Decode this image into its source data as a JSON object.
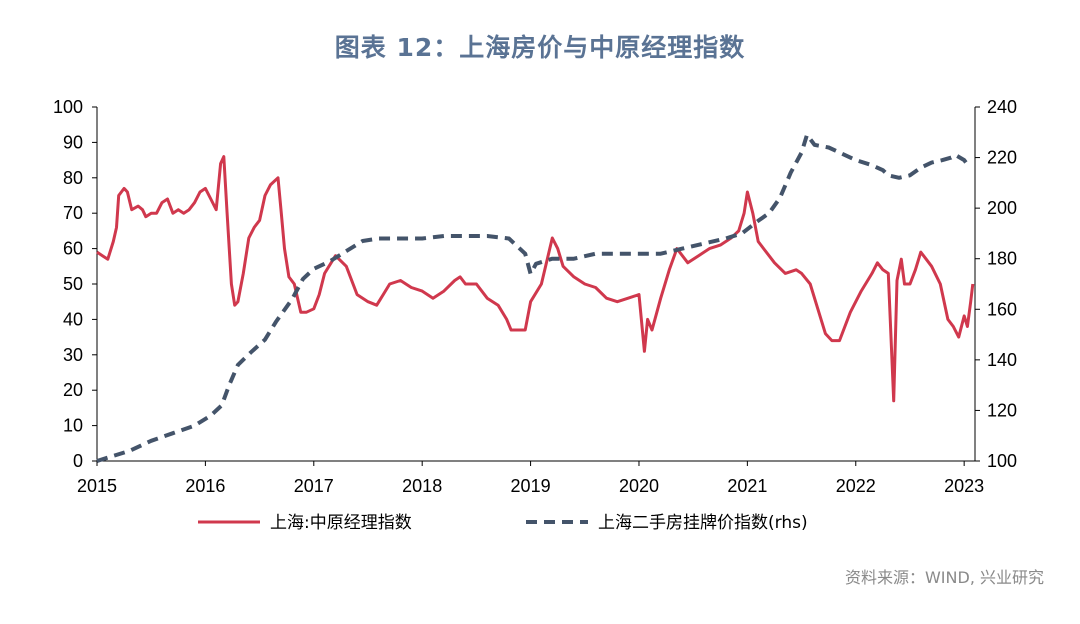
{
  "title": "图表 12：上海房价与中原经理指数",
  "source": "资料来源：WIND, 兴业研究",
  "colors": {
    "series1": "#d0384d",
    "series2": "#44546a",
    "title": "#5a7394"
  },
  "chart_data": {
    "type": "line",
    "title": "",
    "xlabel": "",
    "ylabel": "",
    "x_ticks": [
      "2015",
      "2016",
      "2017",
      "2018",
      "2019",
      "2020",
      "2021",
      "2022",
      "2023"
    ],
    "xlim": [
      2015,
      2023.1
    ],
    "y_left": {
      "ylim": [
        0,
        100
      ],
      "ticks": [
        "0",
        "10",
        "20",
        "30",
        "40",
        "50",
        "60",
        "70",
        "80",
        "90",
        "100"
      ]
    },
    "y_right": {
      "ylim": [
        100,
        240
      ],
      "ticks": [
        "100",
        "120",
        "140",
        "160",
        "180",
        "200",
        "220",
        "240"
      ]
    },
    "legend_position": "bottom",
    "series": [
      {
        "name": "上海:中原经理指数",
        "axis": "left",
        "style": "solid",
        "points": [
          [
            2015.0,
            59
          ],
          [
            2015.05,
            58
          ],
          [
            2015.1,
            57
          ],
          [
            2015.15,
            62
          ],
          [
            2015.18,
            66
          ],
          [
            2015.2,
            75
          ],
          [
            2015.25,
            77
          ],
          [
            2015.28,
            76
          ],
          [
            2015.32,
            71
          ],
          [
            2015.38,
            72
          ],
          [
            2015.42,
            71
          ],
          [
            2015.45,
            69
          ],
          [
            2015.5,
            70
          ],
          [
            2015.55,
            70
          ],
          [
            2015.6,
            73
          ],
          [
            2015.65,
            74
          ],
          [
            2015.7,
            70
          ],
          [
            2015.75,
            71
          ],
          [
            2015.8,
            70
          ],
          [
            2015.85,
            71
          ],
          [
            2015.9,
            73
          ],
          [
            2015.95,
            76
          ],
          [
            2016.0,
            77
          ],
          [
            2016.05,
            74
          ],
          [
            2016.1,
            71
          ],
          [
            2016.14,
            84
          ],
          [
            2016.17,
            86
          ],
          [
            2016.2,
            70
          ],
          [
            2016.24,
            50
          ],
          [
            2016.27,
            44
          ],
          [
            2016.3,
            45
          ],
          [
            2016.35,
            53
          ],
          [
            2016.4,
            63
          ],
          [
            2016.45,
            66
          ],
          [
            2016.5,
            68
          ],
          [
            2016.55,
            75
          ],
          [
            2016.6,
            78
          ],
          [
            2016.67,
            80
          ],
          [
            2016.7,
            70
          ],
          [
            2016.73,
            60
          ],
          [
            2016.77,
            52
          ],
          [
            2016.82,
            50
          ],
          [
            2016.88,
            42
          ],
          [
            2016.93,
            42
          ],
          [
            2017.0,
            43
          ],
          [
            2017.05,
            47
          ],
          [
            2017.1,
            53
          ],
          [
            2017.2,
            58
          ],
          [
            2017.3,
            55
          ],
          [
            2017.4,
            47
          ],
          [
            2017.5,
            45
          ],
          [
            2017.58,
            44
          ],
          [
            2017.62,
            46
          ],
          [
            2017.7,
            50
          ],
          [
            2017.8,
            51
          ],
          [
            2017.9,
            49
          ],
          [
            2018.0,
            48
          ],
          [
            2018.1,
            46
          ],
          [
            2018.2,
            48
          ],
          [
            2018.3,
            51
          ],
          [
            2018.35,
            52
          ],
          [
            2018.4,
            50
          ],
          [
            2018.5,
            50
          ],
          [
            2018.6,
            46
          ],
          [
            2018.7,
            44
          ],
          [
            2018.78,
            40
          ],
          [
            2018.82,
            37
          ],
          [
            2018.88,
            37
          ],
          [
            2018.95,
            37
          ],
          [
            2019.0,
            45
          ],
          [
            2019.1,
            50
          ],
          [
            2019.2,
            63
          ],
          [
            2019.25,
            60
          ],
          [
            2019.3,
            55
          ],
          [
            2019.4,
            52
          ],
          [
            2019.5,
            50
          ],
          [
            2019.6,
            49
          ],
          [
            2019.7,
            46
          ],
          [
            2019.8,
            45
          ],
          [
            2019.9,
            46
          ],
          [
            2020.0,
            47
          ],
          [
            2020.05,
            31
          ],
          [
            2020.08,
            40
          ],
          [
            2020.12,
            37
          ],
          [
            2020.2,
            46
          ],
          [
            2020.28,
            54
          ],
          [
            2020.35,
            60
          ],
          [
            2020.45,
            56
          ],
          [
            2020.55,
            58
          ],
          [
            2020.65,
            60
          ],
          [
            2020.75,
            61
          ],
          [
            2020.85,
            63
          ],
          [
            2020.92,
            65
          ],
          [
            2020.97,
            70
          ],
          [
            2021.0,
            76
          ],
          [
            2021.05,
            70
          ],
          [
            2021.1,
            62
          ],
          [
            2021.15,
            60
          ],
          [
            2021.25,
            56
          ],
          [
            2021.35,
            53
          ],
          [
            2021.45,
            54
          ],
          [
            2021.5,
            53
          ],
          [
            2021.58,
            50
          ],
          [
            2021.65,
            43
          ],
          [
            2021.72,
            36
          ],
          [
            2021.78,
            34
          ],
          [
            2021.85,
            34
          ],
          [
            2021.95,
            42
          ],
          [
            2022.05,
            48
          ],
          [
            2022.15,
            53
          ],
          [
            2022.2,
            56
          ],
          [
            2022.25,
            54
          ],
          [
            2022.3,
            53
          ],
          [
            2022.35,
            17
          ],
          [
            2022.38,
            51
          ],
          [
            2022.42,
            57
          ],
          [
            2022.45,
            50
          ],
          [
            2022.5,
            50
          ],
          [
            2022.55,
            54
          ],
          [
            2022.6,
            59
          ],
          [
            2022.65,
            57
          ],
          [
            2022.7,
            55
          ],
          [
            2022.78,
            50
          ],
          [
            2022.85,
            40
          ],
          [
            2022.9,
            38
          ],
          [
            2022.95,
            35
          ],
          [
            2023.0,
            41
          ],
          [
            2023.03,
            38
          ],
          [
            2023.06,
            45
          ],
          [
            2023.08,
            50
          ]
        ]
      },
      {
        "name": "上海二手房挂牌价指数(rhs)",
        "axis": "right",
        "style": "dashed",
        "points": [
          [
            2015.0,
            100
          ],
          [
            2015.15,
            102
          ],
          [
            2015.3,
            104
          ],
          [
            2015.5,
            108
          ],
          [
            2015.7,
            111
          ],
          [
            2015.9,
            114
          ],
          [
            2016.05,
            118
          ],
          [
            2016.15,
            122
          ],
          [
            2016.22,
            130
          ],
          [
            2016.3,
            138
          ],
          [
            2016.42,
            143
          ],
          [
            2016.55,
            148
          ],
          [
            2016.65,
            155
          ],
          [
            2016.8,
            164
          ],
          [
            2016.9,
            172
          ],
          [
            2017.0,
            176
          ],
          [
            2017.15,
            179
          ],
          [
            2017.3,
            183
          ],
          [
            2017.45,
            187
          ],
          [
            2017.6,
            188
          ],
          [
            2017.8,
            188
          ],
          [
            2018.0,
            188
          ],
          [
            2018.2,
            189
          ],
          [
            2018.4,
            189
          ],
          [
            2018.6,
            189
          ],
          [
            2018.8,
            188
          ],
          [
            2018.9,
            184
          ],
          [
            2018.95,
            182
          ],
          [
            2019.0,
            174
          ],
          [
            2019.05,
            178
          ],
          [
            2019.2,
            180
          ],
          [
            2019.4,
            180
          ],
          [
            2019.6,
            182
          ],
          [
            2019.8,
            182
          ],
          [
            2020.0,
            182
          ],
          [
            2020.2,
            182
          ],
          [
            2020.4,
            184
          ],
          [
            2020.6,
            186
          ],
          [
            2020.8,
            188
          ],
          [
            2020.95,
            190
          ],
          [
            2021.1,
            195
          ],
          [
            2021.2,
            198
          ],
          [
            2021.3,
            204
          ],
          [
            2021.4,
            214
          ],
          [
            2021.5,
            222
          ],
          [
            2021.55,
            229
          ],
          [
            2021.62,
            225
          ],
          [
            2021.75,
            224
          ],
          [
            2021.85,
            222
          ],
          [
            2022.0,
            219
          ],
          [
            2022.15,
            217
          ],
          [
            2022.25,
            215
          ],
          [
            2022.3,
            213
          ],
          [
            2022.4,
            212
          ],
          [
            2022.5,
            213
          ],
          [
            2022.6,
            216
          ],
          [
            2022.7,
            218
          ],
          [
            2022.8,
            219
          ],
          [
            2022.88,
            220
          ],
          [
            2022.92,
            221
          ],
          [
            2023.0,
            219
          ],
          [
            2023.05,
            216
          ]
        ]
      }
    ]
  }
}
